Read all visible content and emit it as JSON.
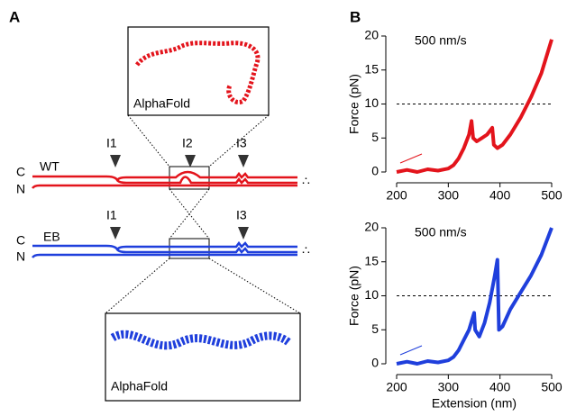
{
  "panel_labels": [
    "A",
    "B"
  ],
  "schematic": {
    "constructs": [
      {
        "label": "WT",
        "termini": [
          "C",
          "N"
        ],
        "domains": [
          "I1",
          "I2",
          "I3"
        ],
        "color": "#e3141c"
      },
      {
        "label": "EB",
        "termini": [
          "C",
          "N"
        ],
        "domains": [
          "I1",
          "I3"
        ],
        "color": "#1f3fdc"
      }
    ],
    "insets": [
      "AlphaFold",
      "AlphaFold"
    ]
  },
  "chart_data": [
    {
      "type": "line",
      "title": "500 nm/s",
      "ylabel": "Force (pN)",
      "xlim": [
        200,
        500
      ],
      "ylim": [
        0,
        20
      ],
      "xticks": [
        200,
        300,
        400,
        500
      ],
      "yticks": [
        0,
        5,
        10,
        15,
        20
      ],
      "reference_line": 10,
      "series": [
        {
          "color": "#e3141c",
          "x": [
            200,
            220,
            240,
            260,
            280,
            300,
            310,
            320,
            330,
            340,
            345,
            348,
            355,
            365,
            375,
            385,
            388,
            395,
            405,
            420,
            440,
            460,
            480,
            500
          ],
          "values": [
            0,
            0.3,
            0,
            0.4,
            0.2,
            0.5,
            1,
            2,
            3.5,
            5.5,
            7.5,
            5,
            4.5,
            5,
            5.5,
            6.5,
            4,
            3.5,
            4,
            5.5,
            8,
            11,
            14.5,
            19.5
          ]
        }
      ]
    },
    {
      "type": "line",
      "title": "500 nm/s",
      "ylabel": "Force (pN)",
      "xlabel": "Extension (nm)",
      "xlim": [
        200,
        500
      ],
      "ylim": [
        0,
        20
      ],
      "xticks": [
        200,
        300,
        400,
        500
      ],
      "yticks": [
        0,
        5,
        10,
        15,
        20
      ],
      "reference_line": 10,
      "series": [
        {
          "color": "#1f3fdc",
          "x": [
            200,
            220,
            240,
            260,
            280,
            300,
            310,
            320,
            330,
            340,
            350,
            352,
            360,
            370,
            380,
            390,
            395,
            398,
            405,
            420,
            440,
            460,
            480,
            500
          ],
          "values": [
            0,
            0.3,
            0,
            0.4,
            0.2,
            0.5,
            1,
            2,
            3.5,
            5,
            7.5,
            5,
            4,
            6,
            9,
            13,
            15.3,
            5,
            5.5,
            8,
            10.5,
            13,
            16,
            20
          ]
        }
      ]
    }
  ]
}
